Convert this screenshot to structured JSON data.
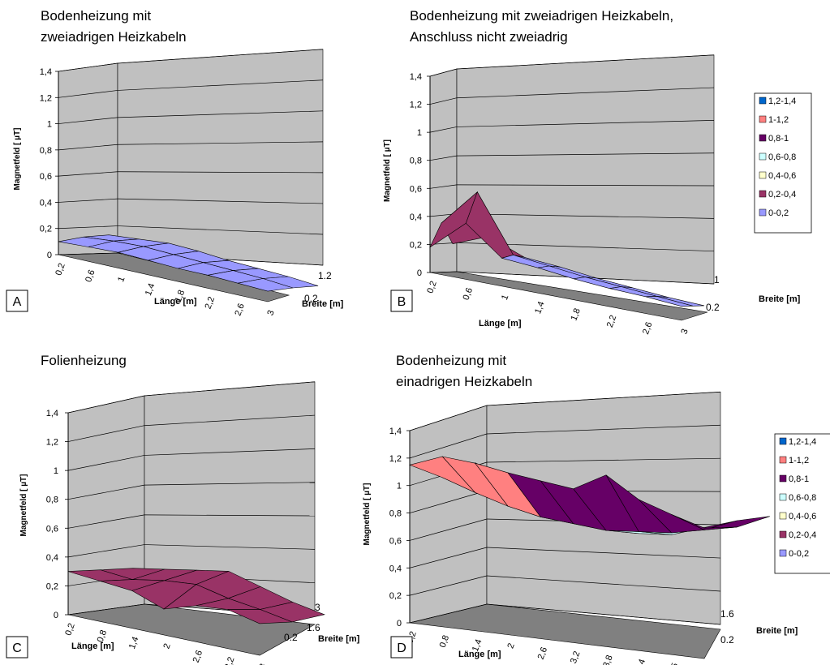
{
  "colors": {
    "band_0_0_2": "#9999ff",
    "band_0_2_0_4": "#993366",
    "band_0_4_0_6": "#ffffcc",
    "band_0_6_0_8": "#ccffff",
    "band_0_8_1": "#660066",
    "band_1_1_2": "#ff8080",
    "band_1_2_1_4": "#0066cc",
    "wall": "#c0c0c0",
    "floor": "#808080"
  },
  "legend": {
    "entries": [
      "1,2-1,4",
      "1-1,2",
      "0,8-1",
      "0,6-0,8",
      "0,4-0,6",
      "0,2-0,4",
      "0-0,2"
    ]
  },
  "chart_data": [
    {
      "panel": "A",
      "type": "surface",
      "title_lines": [
        "Bodenheizung mit",
        "zweiadrigen Heizkabeln"
      ],
      "zlabel": "Magnetfeld [ µT]",
      "xlabel": "Länge [m]",
      "ylabel": "Breite [m]",
      "z_ticks": [
        "0",
        "0,2",
        "0,4",
        "0,6",
        "0,8",
        "1",
        "1,2",
        "1,4"
      ],
      "zlim": [
        0,
        1.4
      ],
      "x_ticks": [
        "0,2",
        "0,6",
        "1",
        "1,4",
        "1,8",
        "2,2",
        "2,6",
        "3"
      ],
      "y_ticks": [
        "0.2",
        "1.2"
      ],
      "x": [
        0.2,
        0.6,
        1.0,
        1.4,
        1.8,
        2.2,
        2.6,
        3.0
      ],
      "series": [
        {
          "y": 0.2,
          "values": [
            0.1,
            0.11,
            0.12,
            0.11,
            0.1,
            0.1,
            0.09,
            0.08
          ]
        },
        {
          "y": 0.7,
          "values": [
            0.13,
            0.15,
            0.16,
            0.15,
            0.14,
            0.13,
            0.12,
            0.1
          ]
        },
        {
          "y": 1.2,
          "values": [
            0.14,
            0.16,
            0.18,
            0.17,
            0.15,
            0.14,
            0.13,
            0.11
          ]
        }
      ],
      "legend": false
    },
    {
      "panel": "B",
      "type": "surface",
      "title_lines": [
        "Bodenheizung mit zweiadrigen Heizkabeln,",
        "Anschluss nicht zweiadrig"
      ],
      "zlabel": "Magnetfeld [ µT]",
      "xlabel": "Länge [m]",
      "ylabel": "Breite [m]",
      "z_ticks": [
        "0",
        "0,2",
        "0,4",
        "0,6",
        "0,8",
        "1",
        "1,2",
        "1,4"
      ],
      "zlim": [
        0,
        1.4
      ],
      "x_ticks": [
        "0,2",
        "0,6",
        "1",
        "1,4",
        "1,8",
        "2,2",
        "2,6",
        "3"
      ],
      "y_ticks": [
        "0.2",
        "1"
      ],
      "x": [
        0.2,
        0.6,
        1.0,
        1.4,
        1.8,
        2.2,
        2.6,
        3.0
      ],
      "series": [
        {
          "y": 0.2,
          "values": [
            0.18,
            0.4,
            0.2,
            0.18,
            0.15,
            0.13,
            0.12,
            0.1
          ]
        },
        {
          "y": 0.6,
          "values": [
            0.35,
            0.62,
            0.22,
            0.19,
            0.16,
            0.14,
            0.12,
            0.1
          ]
        },
        {
          "y": 1.0,
          "values": [
            0.2,
            0.3,
            0.2,
            0.18,
            0.15,
            0.13,
            0.11,
            0.1
          ]
        }
      ],
      "legend": true
    },
    {
      "panel": "C",
      "type": "surface",
      "title_lines": [
        "Folienheizung"
      ],
      "zlabel": "Magnetfeld [ µT]",
      "xlabel": "Länge [m]",
      "ylabel": "Breite [m]",
      "z_ticks": [
        "0",
        "0,2",
        "0,4",
        "0,6",
        "0,8",
        "1",
        "1,2",
        "1,4"
      ],
      "zlim": [
        0,
        1.4
      ],
      "x_ticks": [
        "0,2",
        "0,8",
        "1,4",
        "2",
        "2,6",
        "3,2",
        "3,8"
      ],
      "y_ticks": [
        "0.2",
        "1.6",
        "3"
      ],
      "x": [
        0.2,
        0.8,
        1.4,
        2.0,
        2.6,
        3.2,
        3.8
      ],
      "series": [
        {
          "y": 0.2,
          "values": [
            0.3,
            0.28,
            0.26,
            0.18,
            0.25,
            0.27,
            0.22
          ]
        },
        {
          "y": 1.6,
          "values": [
            0.28,
            0.26,
            0.3,
            0.32,
            0.27,
            0.24,
            0.2
          ]
        },
        {
          "y": 3.0,
          "values": [
            0.26,
            0.3,
            0.34,
            0.38,
            0.32,
            0.26,
            0.22
          ]
        }
      ],
      "legend": false
    },
    {
      "panel": "D",
      "type": "surface",
      "title_lines": [
        "Bodenheizung mit",
        "einadrigen Heizkabeln"
      ],
      "zlabel": "Magnetfeld [ µT]",
      "xlabel": "Länge [m]",
      "ylabel": "Breite [m]",
      "z_ticks": [
        "0",
        "0,2",
        "0,4",
        "0,6",
        "0,8",
        "1",
        "1,2",
        "1,4"
      ],
      "zlim": [
        0,
        1.4
      ],
      "x_ticks": [
        "0,2",
        "0,8",
        "1,4",
        "2",
        "2,6",
        "3,2",
        "3,8",
        "4,4",
        "5",
        "5,6"
      ],
      "y_ticks": [
        "0.2",
        "1.6"
      ],
      "x": [
        0.2,
        0.8,
        1.4,
        2.0,
        2.6,
        3.2,
        3.8,
        4.4,
        5.0,
        5.6
      ],
      "series": [
        {
          "y": 0.2,
          "values": [
            1.15,
            1.24,
            1.22,
            1.18,
            1.15,
            1.12,
            1.25,
            1.1,
            1.02,
            0.95
          ]
        },
        {
          "y": 0.9,
          "values": [
            1.0,
            0.92,
            0.85,
            0.8,
            0.78,
            0.76,
            0.78,
            0.8,
            0.85,
            0.9
          ]
        },
        {
          "y": 1.6,
          "values": [
            1.05,
            0.95,
            0.86,
            0.75,
            0.7,
            0.68,
            0.7,
            0.78,
            0.86,
            0.92
          ]
        }
      ],
      "legend": true
    }
  ]
}
